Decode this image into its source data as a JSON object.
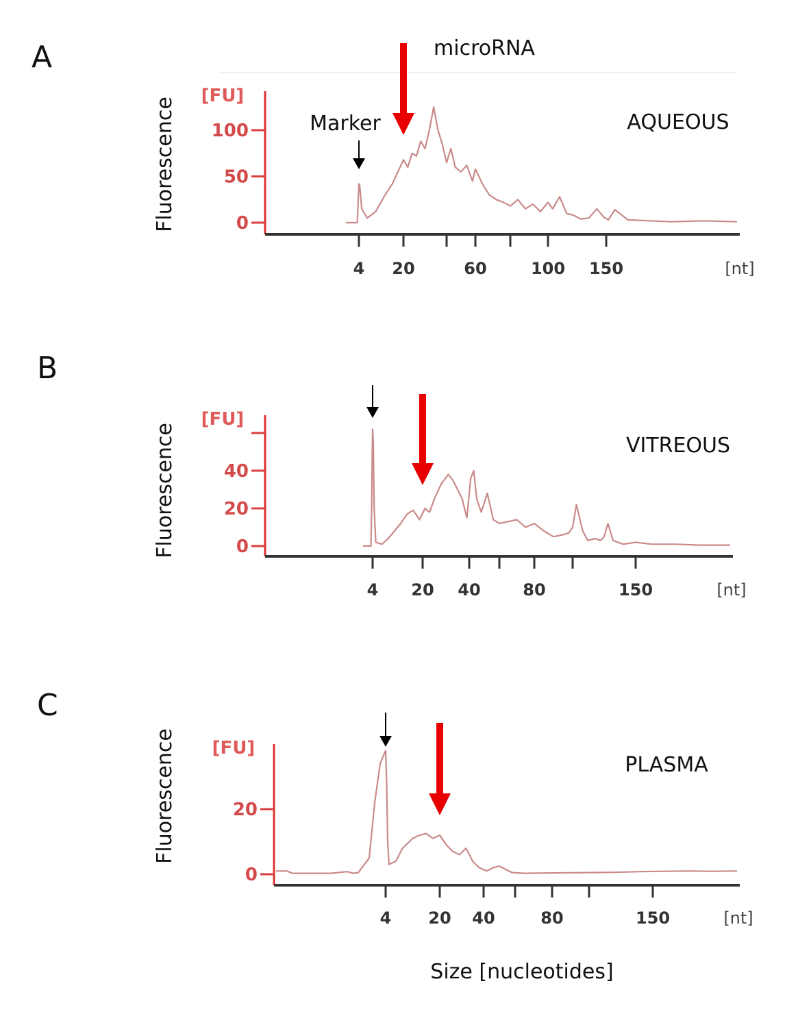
{
  "chart_data": [
    {
      "type": "line",
      "panel": "A",
      "sample": "AQUEOUS",
      "ylabel": "Fluorescence",
      "yunit": "[FU]",
      "xunit": "[nt]",
      "yticks": [
        0,
        50,
        100
      ],
      "ylim": [
        0,
        135
      ],
      "xticks": [
        {
          "label": "4",
          "value": 4
        },
        {
          "label": "20",
          "value": 20
        },
        {
          "label": "",
          "value": 40
        },
        {
          "label": "60",
          "value": 60
        },
        {
          "label": "",
          "value": 80
        },
        {
          "label": "100",
          "value": 100
        },
        {
          "label": "150",
          "value": 150
        }
      ],
      "marker_label": "Marker",
      "marker_at": 4,
      "microrna_label": "microRNA",
      "microrna_at": 20,
      "series": [
        {
          "name": "electropherogram",
          "x": [
            0,
            3.5,
            3.8,
            4,
            4.3,
            5,
            7,
            10,
            13,
            16,
            18,
            20,
            22,
            24,
            26,
            28,
            30,
            32,
            34,
            36,
            38,
            40,
            43,
            46,
            50,
            54,
            58,
            60,
            64,
            68,
            72,
            76,
            80,
            84,
            88,
            92,
            96,
            100,
            104,
            110,
            116,
            122,
            128,
            135,
            142,
            148,
            152,
            158,
            170,
            190,
            210,
            240,
            270
          ],
          "values": [
            0,
            0,
            25,
            42,
            40,
            15,
            5,
            12,
            28,
            42,
            55,
            68,
            60,
            75,
            72,
            88,
            80,
            100,
            125,
            100,
            85,
            65,
            80,
            60,
            55,
            62,
            45,
            58,
            42,
            30,
            25,
            22,
            18,
            25,
            15,
            20,
            12,
            22,
            15,
            28,
            10,
            8,
            4,
            5,
            15,
            6,
            3,
            14,
            3,
            2,
            1,
            2,
            1
          ]
        }
      ]
    },
    {
      "type": "line",
      "panel": "B",
      "sample": "VITREOUS",
      "ylabel": "Fluorescence",
      "yunit": "[FU]",
      "xunit": "[nt]",
      "yticks": [
        0,
        20,
        40
      ],
      "ylim": [
        0,
        65
      ],
      "extra_ytick": 60,
      "xticks": [
        {
          "label": "4",
          "value": 4
        },
        {
          "label": "20",
          "value": 20
        },
        {
          "label": "40",
          "value": 40
        },
        {
          "label": "",
          "value": 60
        },
        {
          "label": "80",
          "value": 80
        },
        {
          "label": "",
          "value": 100
        },
        {
          "label": "150",
          "value": 150
        }
      ],
      "marker_at": 4,
      "microrna_at": 20,
      "series": [
        {
          "name": "electropherogram",
          "x": [
            0,
            3.3,
            3.6,
            3.8,
            4,
            4.2,
            4.5,
            5,
            7,
            9,
            11,
            13,
            15,
            17,
            19,
            21,
            23,
            25,
            28,
            31,
            33,
            35,
            37,
            39,
            41,
            43,
            45,
            48,
            52,
            56,
            60,
            65,
            70,
            75,
            80,
            85,
            90,
            95,
            98,
            100,
            103,
            108,
            112,
            118,
            122,
            125,
            128,
            132,
            140,
            150,
            160,
            175,
            190,
            210
          ],
          "values": [
            0,
            0,
            20,
            45,
            62,
            55,
            20,
            2,
            1,
            4,
            8,
            12,
            17,
            19,
            14,
            20,
            18,
            25,
            33,
            38,
            35,
            30,
            25,
            15,
            36,
            40,
            25,
            18,
            28,
            14,
            12,
            13,
            14,
            10,
            12,
            8,
            5,
            6,
            7,
            10,
            22,
            8,
            3,
            4,
            3,
            5,
            12,
            3,
            1,
            2,
            1,
            1,
            0.5,
            0.5
          ]
        }
      ]
    },
    {
      "type": "line",
      "panel": "C",
      "sample": "PLASMA",
      "ylabel": "Fluorescence",
      "yunit": "[FU]",
      "xunit": "[nt]",
      "xlabel": "Size [nucleotides]",
      "yticks": [
        0,
        20
      ],
      "ylim": [
        0,
        40
      ],
      "xticks": [
        {
          "label": "4",
          "value": 4
        },
        {
          "label": "20",
          "value": 20
        },
        {
          "label": "40",
          "value": 40
        },
        {
          "label": "",
          "value": 60
        },
        {
          "label": "80",
          "value": 80
        },
        {
          "label": "",
          "value": 100
        },
        {
          "label": "150",
          "value": 150
        }
      ],
      "marker_at": 4,
      "microrna_at": 20,
      "series": [
        {
          "name": "electropherogram",
          "x": [
            0,
            0.4,
            0.6,
            1,
            2,
            2.6,
            2.8,
            3,
            3.4,
            3.6,
            3.8,
            4,
            4.3,
            4.6,
            5,
            7,
            9,
            12,
            14,
            16,
            18,
            20,
            23,
            26,
            29,
            32,
            35,
            38,
            42,
            46,
            50,
            54,
            58,
            65,
            80,
            100,
            120,
            140,
            160,
            180,
            200,
            220
          ],
          "values": [
            1,
            1,
            0.3,
            0.3,
            0.3,
            0.8,
            0.3,
            0.5,
            5,
            22,
            34,
            38,
            28,
            10,
            3,
            4,
            8,
            11,
            12,
            12.5,
            11,
            12,
            9,
            7,
            6,
            8,
            4,
            2,
            1,
            2,
            2.5,
            1.5,
            0.5,
            0.3,
            0.4,
            0.5,
            0.6,
            0.8,
            0.9,
            1,
            0.9,
            1
          ]
        }
      ]
    }
  ]
}
